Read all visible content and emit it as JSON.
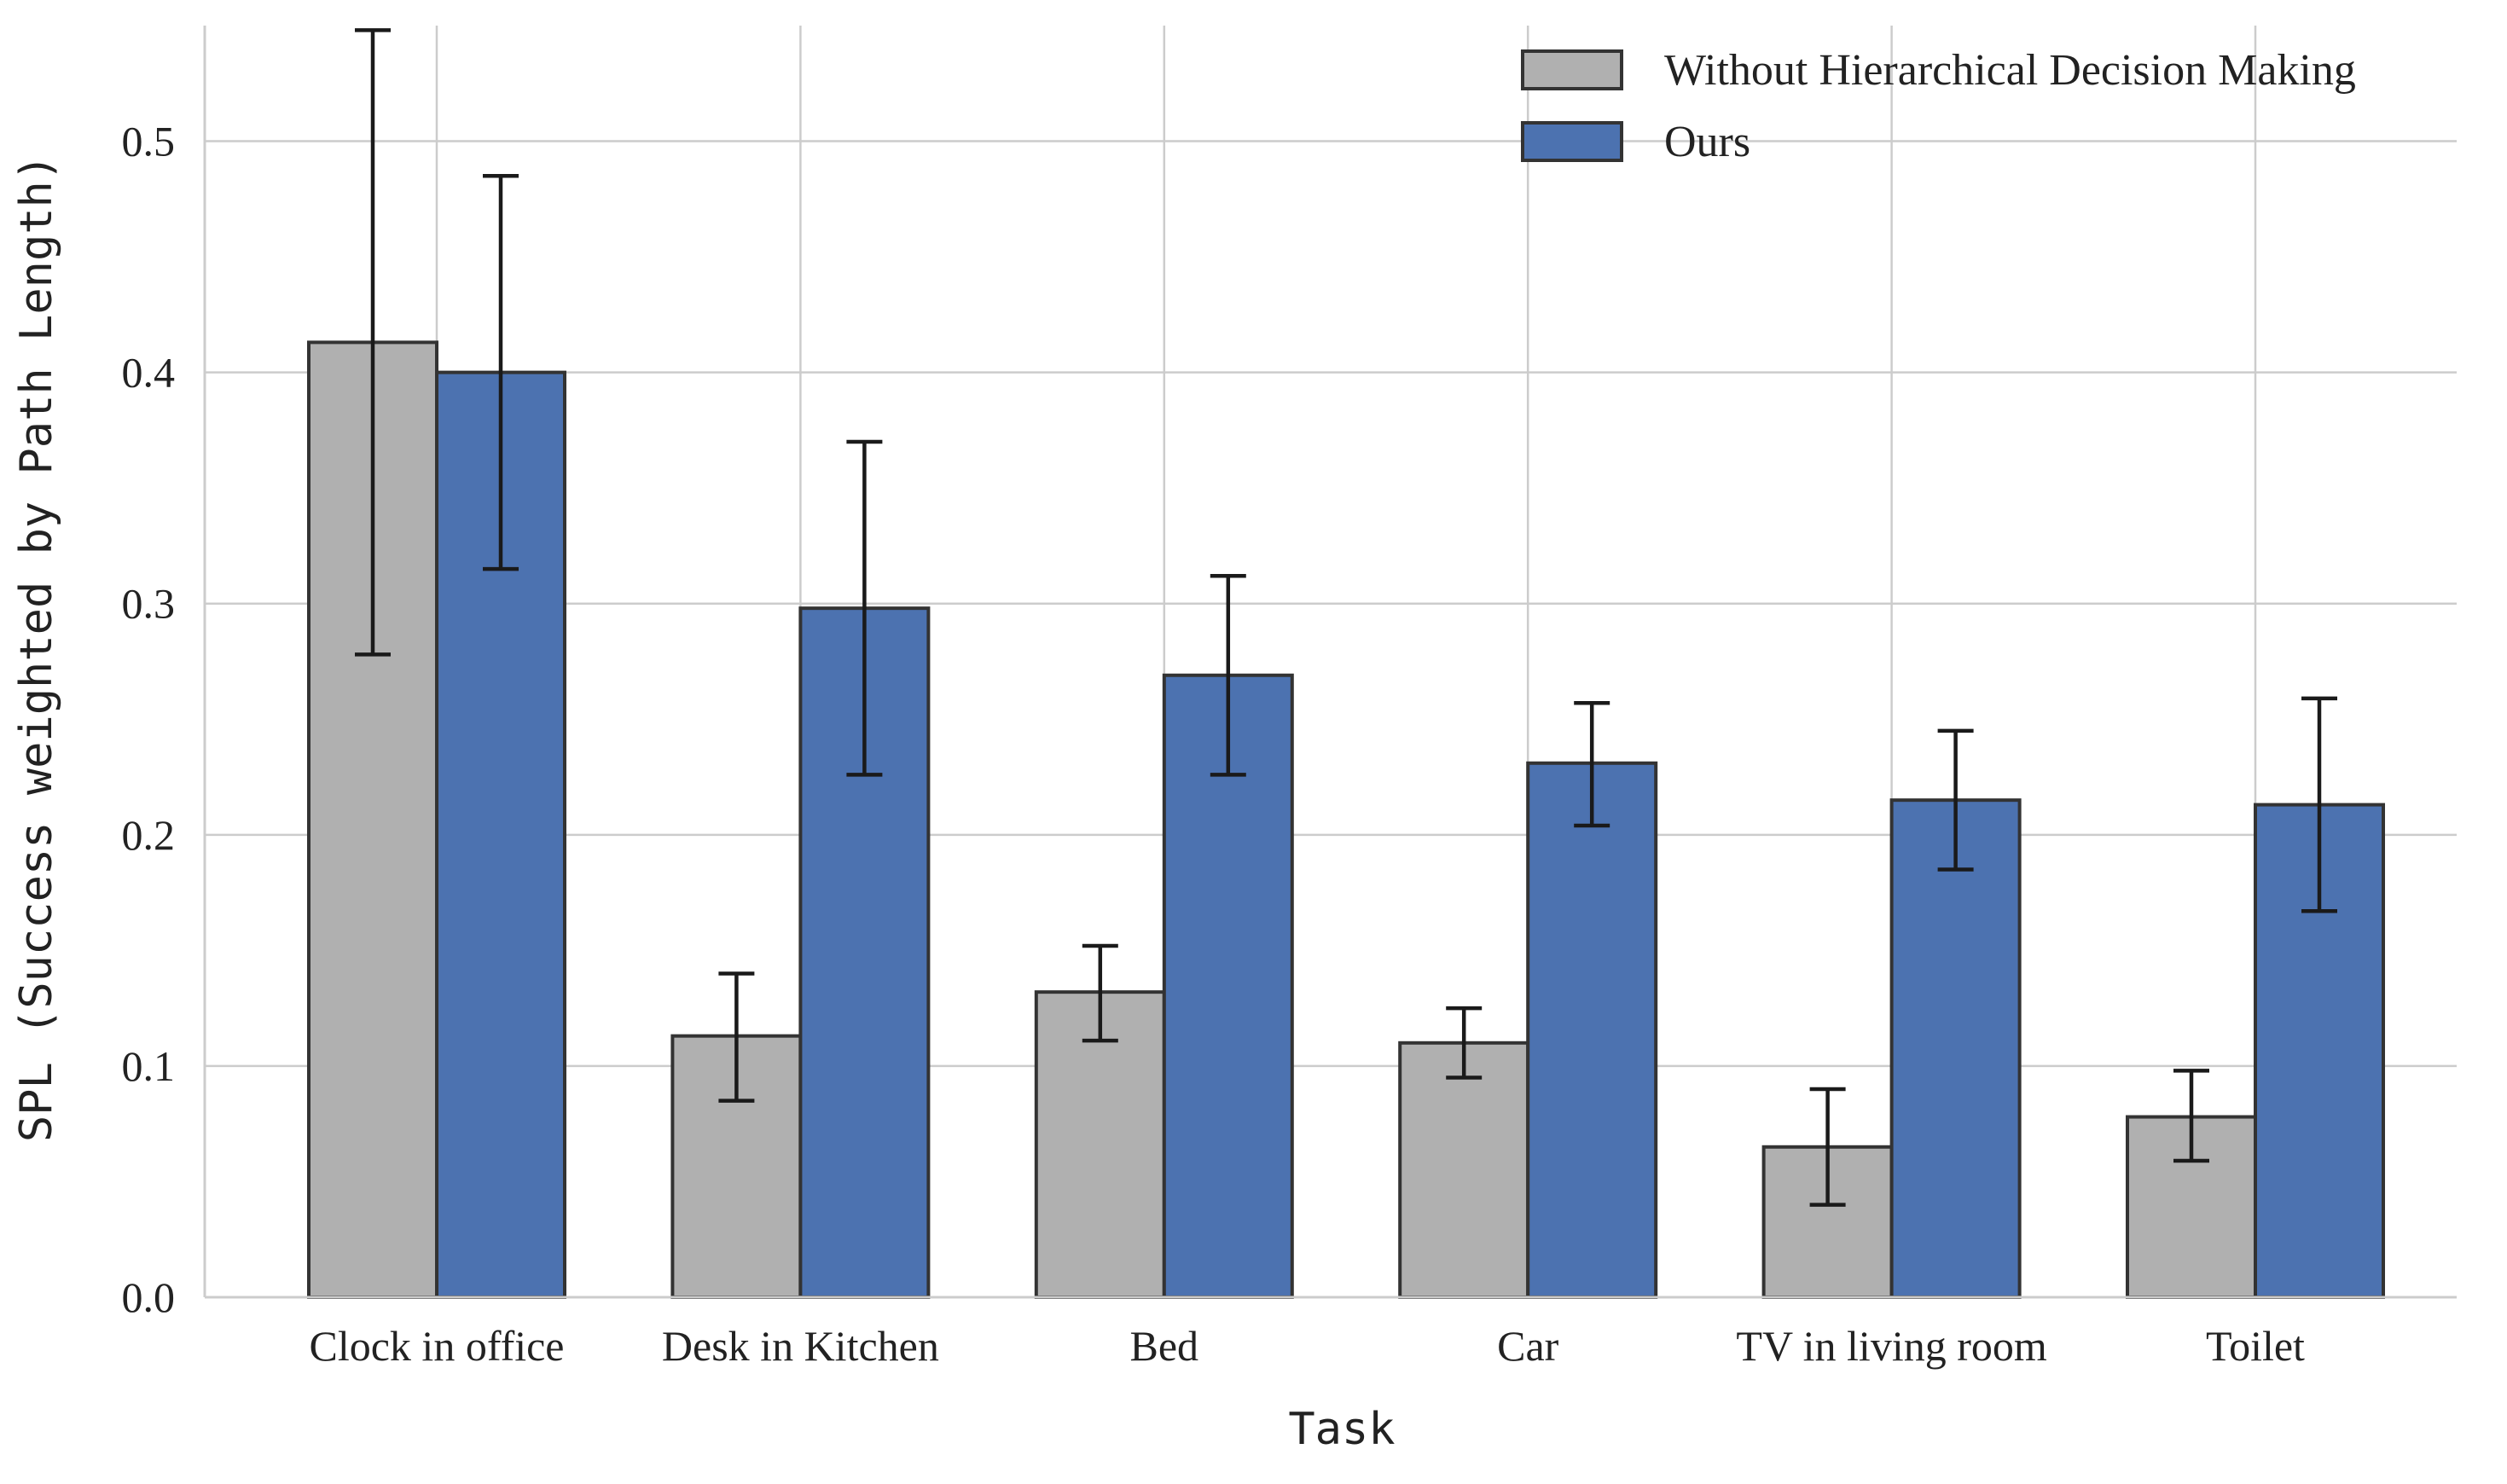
{
  "chart_data": {
    "type": "bar",
    "title": "",
    "xlabel": "Task",
    "ylabel": "SPL (Success weighted by Path Length)",
    "ylim": [
      0,
      0.55
    ],
    "yticks": [
      0.0,
      0.1,
      0.2,
      0.3,
      0.4,
      0.5
    ],
    "ytick_labels": [
      "0.0",
      "0.1",
      "0.2",
      "0.3",
      "0.4",
      "0.5"
    ],
    "grid": true,
    "legend_position": "top-right",
    "categories": [
      "Clock in office",
      "Desk in Kitchen",
      "Bed",
      "Car",
      "TV in living room",
      "Toilet"
    ],
    "series": [
      {
        "name": "Without Hierarchical Decision Making",
        "color": "#b0b0b0",
        "values": [
          0.413,
          0.113,
          0.132,
          0.11,
          0.065,
          0.078
        ],
        "error_low": [
          0.278,
          0.085,
          0.111,
          0.095,
          0.04,
          0.059
        ],
        "error_high": [
          0.548,
          0.14,
          0.152,
          0.125,
          0.09,
          0.098
        ]
      },
      {
        "name": "Ours",
        "color": "#4c72b0",
        "values": [
          0.4,
          0.298,
          0.269,
          0.231,
          0.215,
          0.213
        ],
        "error_low": [
          0.315,
          0.226,
          0.226,
          0.204,
          0.185,
          0.167
        ],
        "error_high": [
          0.485,
          0.37,
          0.312,
          0.257,
          0.245,
          0.259
        ]
      }
    ]
  }
}
